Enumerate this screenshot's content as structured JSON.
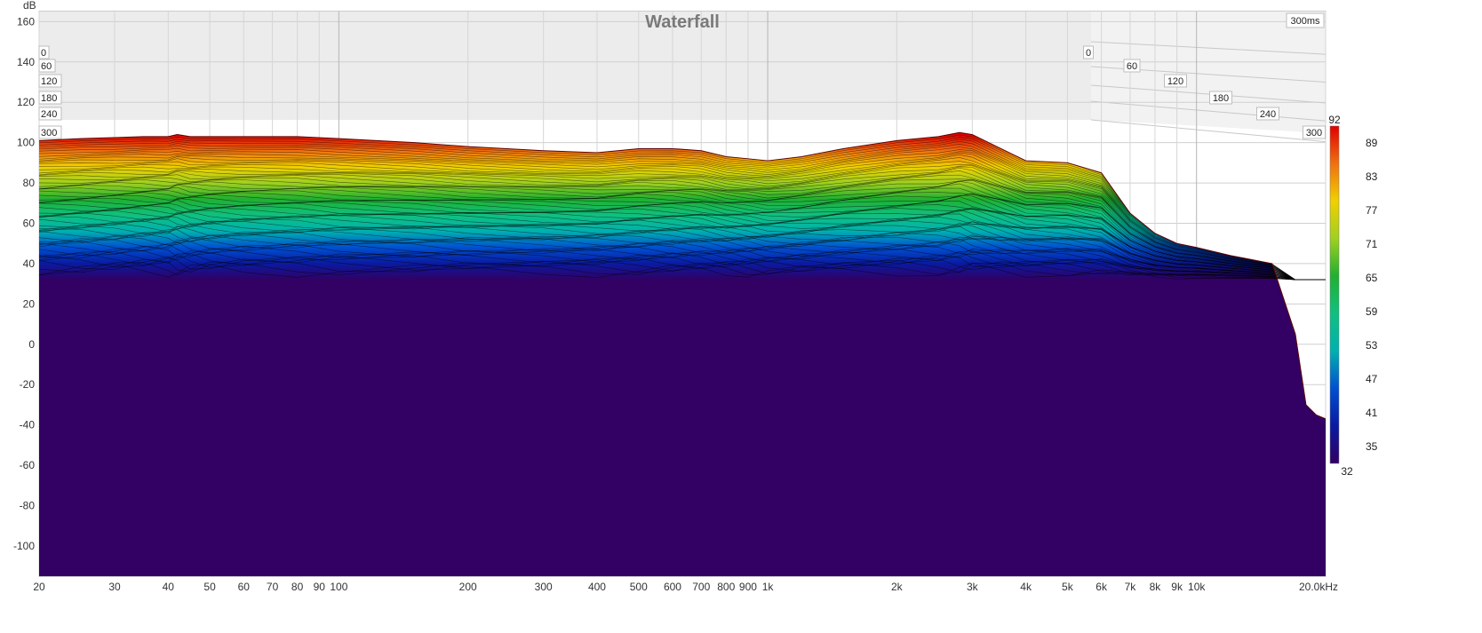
{
  "chart_data": {
    "type": "area",
    "title": "Waterfall",
    "ylabel": "dB",
    "xunit": "kHz",
    "ylim": [
      -115,
      165
    ],
    "xlim": [
      20,
      20000
    ],
    "xscale": "log",
    "grid": true,
    "y_ticks": [
      160,
      140,
      120,
      100,
      80,
      60,
      40,
      20,
      0,
      -20,
      -40,
      -60,
      -80,
      -100
    ],
    "x_ticks": [
      {
        "value": 20,
        "label": "20"
      },
      {
        "value": 30,
        "label": "30"
      },
      {
        "value": 40,
        "label": "40"
      },
      {
        "value": 50,
        "label": "50"
      },
      {
        "value": 60,
        "label": "60"
      },
      {
        "value": 70,
        "label": "70"
      },
      {
        "value": 80,
        "label": "80"
      },
      {
        "value": 90,
        "label": "90"
      },
      {
        "value": 100,
        "label": "100"
      },
      {
        "value": 200,
        "label": "200"
      },
      {
        "value": 300,
        "label": "300"
      },
      {
        "value": 400,
        "label": "400"
      },
      {
        "value": 500,
        "label": "500"
      },
      {
        "value": 600,
        "label": "600"
      },
      {
        "value": 700,
        "label": "700"
      },
      {
        "value": 800,
        "label": "800"
      },
      {
        "value": 900,
        "label": "900"
      },
      {
        "value": 1000,
        "label": "1k"
      },
      {
        "value": 2000,
        "label": "2k"
      },
      {
        "value": 3000,
        "label": "3k"
      },
      {
        "value": 4000,
        "label": "4k"
      },
      {
        "value": 5000,
        "label": "5k"
      },
      {
        "value": 6000,
        "label": "6k"
      },
      {
        "value": 7000,
        "label": "7k"
      },
      {
        "value": 8000,
        "label": "8k"
      },
      {
        "value": 9000,
        "label": "9k"
      },
      {
        "value": 10000,
        "label": "10k"
      },
      {
        "value": 20000,
        "label": "20.0kHz"
      }
    ],
    "time_label": "300ms",
    "time_ticks_left": [
      "0",
      "60",
      "120",
      "180",
      "240",
      "300"
    ],
    "time_ticks_right": [
      "0",
      "60",
      "120",
      "180",
      "240",
      "300"
    ],
    "colorbar": {
      "min": 32,
      "max": 92,
      "ticks": [
        89,
        83,
        77,
        71,
        65,
        59,
        53,
        47,
        41,
        35
      ],
      "colors": [
        "#320064",
        "#0a1aa0",
        "#0050d0",
        "#00b0b0",
        "#10c080",
        "#20b030",
        "#a0d020",
        "#f0d000",
        "#f07010",
        "#e00000"
      ]
    },
    "series": [
      {
        "time_ms": 0,
        "x": [
          20,
          25,
          30,
          35,
          40,
          42,
          45,
          50,
          60,
          80,
          100,
          150,
          200,
          300,
          400,
          500,
          600,
          700,
          800,
          900,
          1000,
          1200,
          1500,
          2000,
          2500,
          2800,
          3000,
          3500,
          4000,
          5000,
          6000,
          7000,
          8000,
          9000,
          10000,
          12000,
          15000,
          17000,
          18000,
          19000,
          20000
        ],
        "y": [
          101,
          102,
          102.5,
          103,
          103,
          104,
          103,
          103,
          103,
          103,
          102,
          100,
          98,
          96,
          95,
          97,
          97,
          96,
          93,
          92,
          91,
          93,
          97,
          101,
          103,
          105,
          104,
          97,
          91,
          90,
          85,
          65,
          55,
          50,
          48,
          44,
          40,
          5,
          -30,
          -35,
          -37
        ]
      }
    ],
    "floor_db": 32
  }
}
